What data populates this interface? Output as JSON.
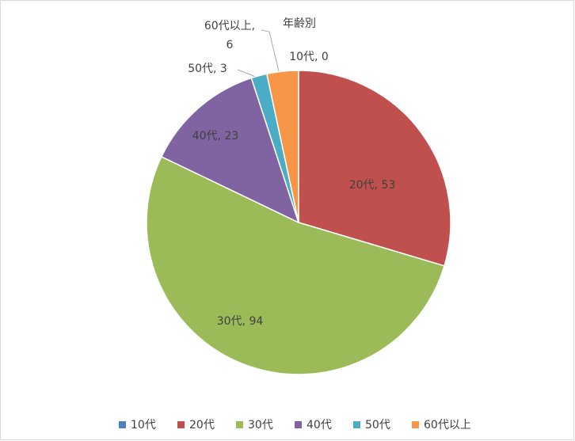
{
  "chart_data": {
    "type": "pie",
    "title": "年齢別",
    "categories": [
      "10代",
      "20代",
      "30代",
      "40代",
      "50代",
      "60代以上"
    ],
    "values": [
      0,
      53,
      94,
      23,
      3,
      6
    ],
    "value_labels": [
      "10代, 0",
      "20代, 53",
      "30代, 94",
      "40代, 23",
      "50代, 3",
      "60代以上, 6"
    ],
    "colors": [
      "#4f81bd",
      "#c0504d",
      "#9bbb59",
      "#8064a2",
      "#4bacc6",
      "#f79646"
    ],
    "legend": "bottom"
  }
}
